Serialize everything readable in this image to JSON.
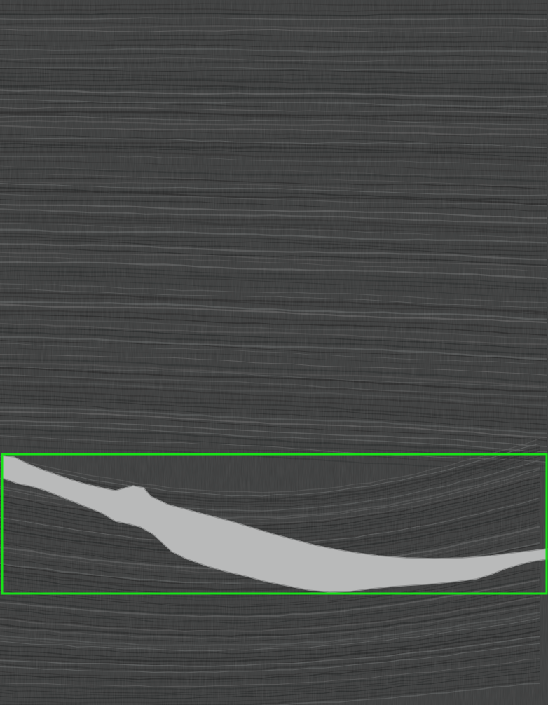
{
  "image": {
    "kind": "seismic-section",
    "background_color": "#3b3c3c",
    "reflector_dark_color": "#262727",
    "reflector_light_color": "#5a5b5b",
    "salt_body_color": "#b9baba",
    "salt_body_edge_color": "#8d8e8e",
    "highlight_box_color": "#18e418"
  }
}
